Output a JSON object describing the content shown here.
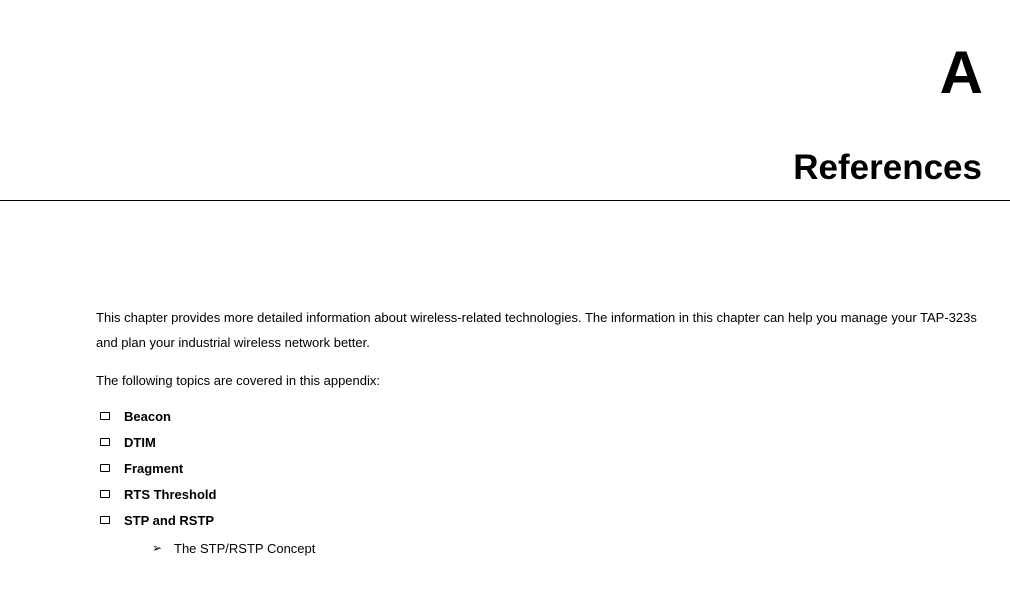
{
  "chapter_letter": "A",
  "chapter_title": "References",
  "intro_text": "This chapter provides more detailed information about wireless-related technologies. The information in this chapter can help you manage your TAP-323s and plan your industrial wireless network better.",
  "lead_text": "The following topics are covered in this appendix:",
  "topics": [
    {
      "label": "Beacon"
    },
    {
      "label": "DTIM"
    },
    {
      "label": "Fragment"
    },
    {
      "label": "RTS Threshold"
    },
    {
      "label": "STP and RSTP",
      "sub": [
        {
          "label": "The STP/RSTP Concept"
        }
      ]
    }
  ],
  "chevron_glyph": "➢",
  "colors": {
    "text": "#000000",
    "background": "#ffffff",
    "rule": "#000000"
  },
  "typography": {
    "heading_font": "Verdana",
    "body_font": "Verdana",
    "chapter_letter_size_pt": 45,
    "chapter_title_size_pt": 26,
    "body_size_pt": 10
  }
}
